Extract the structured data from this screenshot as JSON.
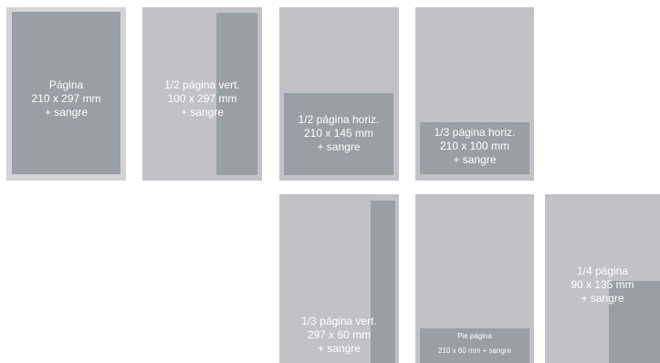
{
  "colors": {
    "page": "#c2c2c6",
    "page_full_frame": "#d3d3d6",
    "ad_area": "#9a9ea5",
    "text": "#ffffff"
  },
  "formats": [
    {
      "name": "Página",
      "size": "210 x 297 mm",
      "bleed": "+ sangre"
    },
    {
      "name": "1/2 página vert.",
      "size": "100 x 297 mm",
      "bleed": "+ sangre"
    },
    {
      "name": "1/2 página horiz.",
      "size": "210 x 145 mm",
      "bleed": "+ sangre"
    },
    {
      "name": "1/3 página horiz.",
      "size": "210 x 100 mm",
      "bleed": "+ sangre"
    },
    {
      "name": "1/3 página vert.",
      "size": "297 x 60 mm",
      "bleed": "+ sangre"
    },
    {
      "name": "Pie página",
      "size_bleed": "210 x 60 mm + sangre"
    },
    {
      "name": "1/4 página",
      "size": "90 x 135 mm",
      "bleed": "+ sangre"
    }
  ]
}
